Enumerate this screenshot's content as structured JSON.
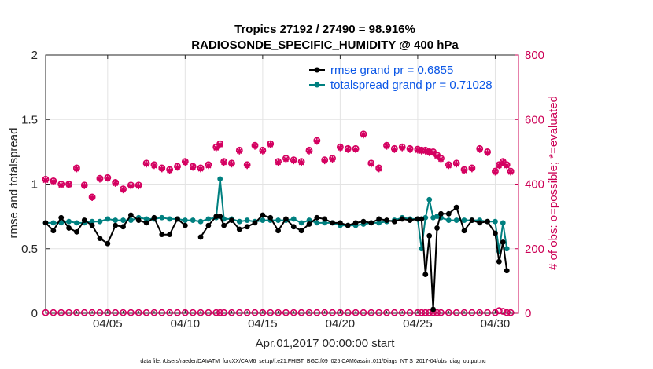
{
  "chart_data": {
    "type": "line",
    "title_line1": "Tropics 27192 / 27490 = 98.916%",
    "title_line2": "RADIOSONDE_SPECIFIC_HUMIDITY @ 400 hPa",
    "xlabel": "Apr.01,2017 00:00:00 start",
    "ylabel_left": "rmse and totalspread",
    "ylabel_right": "# of obs: o=possible; *=evaluated",
    "xlim": [
      1,
      31.5
    ],
    "ylim_left": [
      0,
      2
    ],
    "ylim_right": [
      0,
      800
    ],
    "x_ticks": [
      {
        "value": 5,
        "label": "04/05"
      },
      {
        "value": 10,
        "label": "04/10"
      },
      {
        "value": 15,
        "label": "04/15"
      },
      {
        "value": 20,
        "label": "04/20"
      },
      {
        "value": 25,
        "label": "04/25"
      },
      {
        "value": 30,
        "label": "04/30"
      }
    ],
    "y_ticks_left": [
      {
        "value": 0,
        "label": "0"
      },
      {
        "value": 0.5,
        "label": "0.5"
      },
      {
        "value": 1,
        "label": "1"
      },
      {
        "value": 1.5,
        "label": "1.5"
      },
      {
        "value": 2,
        "label": "2"
      }
    ],
    "y_ticks_right": [
      {
        "value": 0,
        "label": "0"
      },
      {
        "value": 200,
        "label": "200"
      },
      {
        "value": 400,
        "label": "400"
      },
      {
        "value": 600,
        "label": "600"
      },
      {
        "value": 800,
        "label": "800"
      }
    ],
    "grid": true,
    "legend_position": "top-right",
    "x": [
      1.0,
      1.5,
      2.0,
      2.5,
      3.0,
      3.5,
      4.0,
      4.5,
      5.0,
      5.5,
      6.0,
      6.5,
      7.0,
      7.5,
      8.0,
      8.5,
      9.0,
      9.5,
      10.0,
      10.5,
      11.0,
      11.5,
      12.0,
      12.25,
      12.5,
      13.0,
      13.5,
      14.0,
      14.5,
      15.0,
      15.5,
      16.0,
      16.5,
      17.0,
      17.5,
      18.0,
      18.5,
      19.0,
      19.5,
      20.0,
      20.5,
      21.0,
      21.5,
      22.0,
      22.5,
      23.0,
      23.5,
      24.0,
      24.5,
      25.0,
      25.25,
      25.5,
      25.75,
      26.0,
      26.25,
      26.5,
      27.0,
      27.5,
      28.0,
      28.5,
      29.0,
      29.5,
      30.0,
      30.25,
      30.5,
      30.75,
      31.0
    ],
    "series": [
      {
        "name": "rmse",
        "label": "rmse grand pr = 0.6855",
        "color": "#000000",
        "marker": "circle",
        "y": [
          0.7,
          0.64,
          0.74,
          0.66,
          0.63,
          0.72,
          0.68,
          0.58,
          0.54,
          0.68,
          0.67,
          0.76,
          0.72,
          0.7,
          0.74,
          0.61,
          0.61,
          0.73,
          0.68,
          null,
          0.59,
          0.68,
          0.75,
          0.75,
          0.68,
          0.72,
          0.65,
          0.67,
          0.7,
          0.76,
          0.74,
          0.64,
          0.73,
          0.67,
          0.64,
          0.69,
          0.74,
          0.73,
          0.7,
          0.7,
          0.68,
          0.7,
          0.71,
          0.7,
          0.73,
          0.72,
          0.71,
          0.73,
          0.72,
          0.73,
          0.73,
          0.3,
          0.6,
          0.03,
          0.66,
          0.77,
          0.77,
          0.82,
          0.64,
          0.72,
          0.7,
          0.71,
          0.62,
          0.4,
          0.55,
          0.33,
          null
        ]
      },
      {
        "name": "totalspread",
        "label": "totalspread grand pr = 0.71028",
        "color": "#008080",
        "marker": "circle",
        "y": [
          0.7,
          0.7,
          0.7,
          0.71,
          0.7,
          0.7,
          0.71,
          0.71,
          0.73,
          0.72,
          0.72,
          0.72,
          0.74,
          0.73,
          0.73,
          0.74,
          0.73,
          0.73,
          0.72,
          0.72,
          0.71,
          0.73,
          0.74,
          1.04,
          0.73,
          0.73,
          0.71,
          0.72,
          0.71,
          0.72,
          0.72,
          0.72,
          0.72,
          0.73,
          0.7,
          0.72,
          0.7,
          0.7,
          0.7,
          0.68,
          0.68,
          0.68,
          0.69,
          0.7,
          0.7,
          0.71,
          0.72,
          0.74,
          0.73,
          0.73,
          0.5,
          0.74,
          0.88,
          0.74,
          0.75,
          0.74,
          0.72,
          0.72,
          0.72,
          0.72,
          0.72,
          0.71,
          0.71,
          0.48,
          0.7,
          0.5,
          null
        ]
      },
      {
        "name": "obs_possible",
        "label": "o=possible",
        "color": "#d40060",
        "marker": "o",
        "axis": "right",
        "y": [
          415,
          410,
          400,
          400,
          450,
          397,
          360,
          418,
          420,
          405,
          385,
          397,
          397,
          465,
          460,
          450,
          445,
          455,
          470,
          455,
          450,
          460,
          515,
          525,
          470,
          465,
          505,
          460,
          520,
          505,
          525,
          470,
          480,
          475,
          470,
          505,
          535,
          475,
          480,
          515,
          510,
          510,
          555,
          465,
          450,
          520,
          510,
          515,
          510,
          508,
          505,
          505,
          500,
          500,
          490,
          480,
          460,
          465,
          445,
          450,
          510,
          500,
          440,
          460,
          470,
          460,
          440
        ]
      },
      {
        "name": "obs_evaluated",
        "label": "*=evaluated",
        "color": "#d40060",
        "marker": "*",
        "axis": "right",
        "y": [
          412,
          408,
          397,
          398,
          447,
          395,
          358,
          415,
          418,
          402,
          382,
          394,
          394,
          462,
          457,
          447,
          442,
          452,
          467,
          452,
          447,
          457,
          512,
          522,
          467,
          462,
          502,
          457,
          517,
          502,
          522,
          467,
          477,
          472,
          467,
          502,
          532,
          472,
          477,
          512,
          507,
          507,
          552,
          462,
          447,
          517,
          507,
          512,
          507,
          505,
          502,
          502,
          497,
          497,
          487,
          477,
          457,
          462,
          442,
          447,
          507,
          497,
          437,
          457,
          467,
          457,
          437
        ]
      },
      {
        "name": "obs_possible_zero",
        "label": "o=possible (bottom)",
        "color": "#d40060",
        "marker": "o",
        "axis": "right",
        "y": [
          2,
          2,
          2,
          2,
          2,
          2,
          2,
          2,
          2,
          2,
          2,
          2,
          2,
          2,
          2,
          2,
          2,
          2,
          2,
          2,
          2,
          2,
          2,
          2,
          2,
          2,
          2,
          2,
          2,
          2,
          2,
          2,
          2,
          2,
          2,
          2,
          2,
          2,
          2,
          2,
          2,
          2,
          2,
          2,
          2,
          2,
          2,
          2,
          2,
          2,
          2,
          2,
          2,
          2,
          2,
          2,
          2,
          2,
          2,
          2,
          2,
          2,
          2,
          8,
          6,
          2,
          2
        ]
      }
    ],
    "footer": "data file: /Users/raeder/DAI/ATM_forcXX/CAM6_setup/f.e21.FHIST_BGC.f09_025.CAM6assim.011/Diags_NTrS_2017-04/obs_diag_output.nc"
  }
}
